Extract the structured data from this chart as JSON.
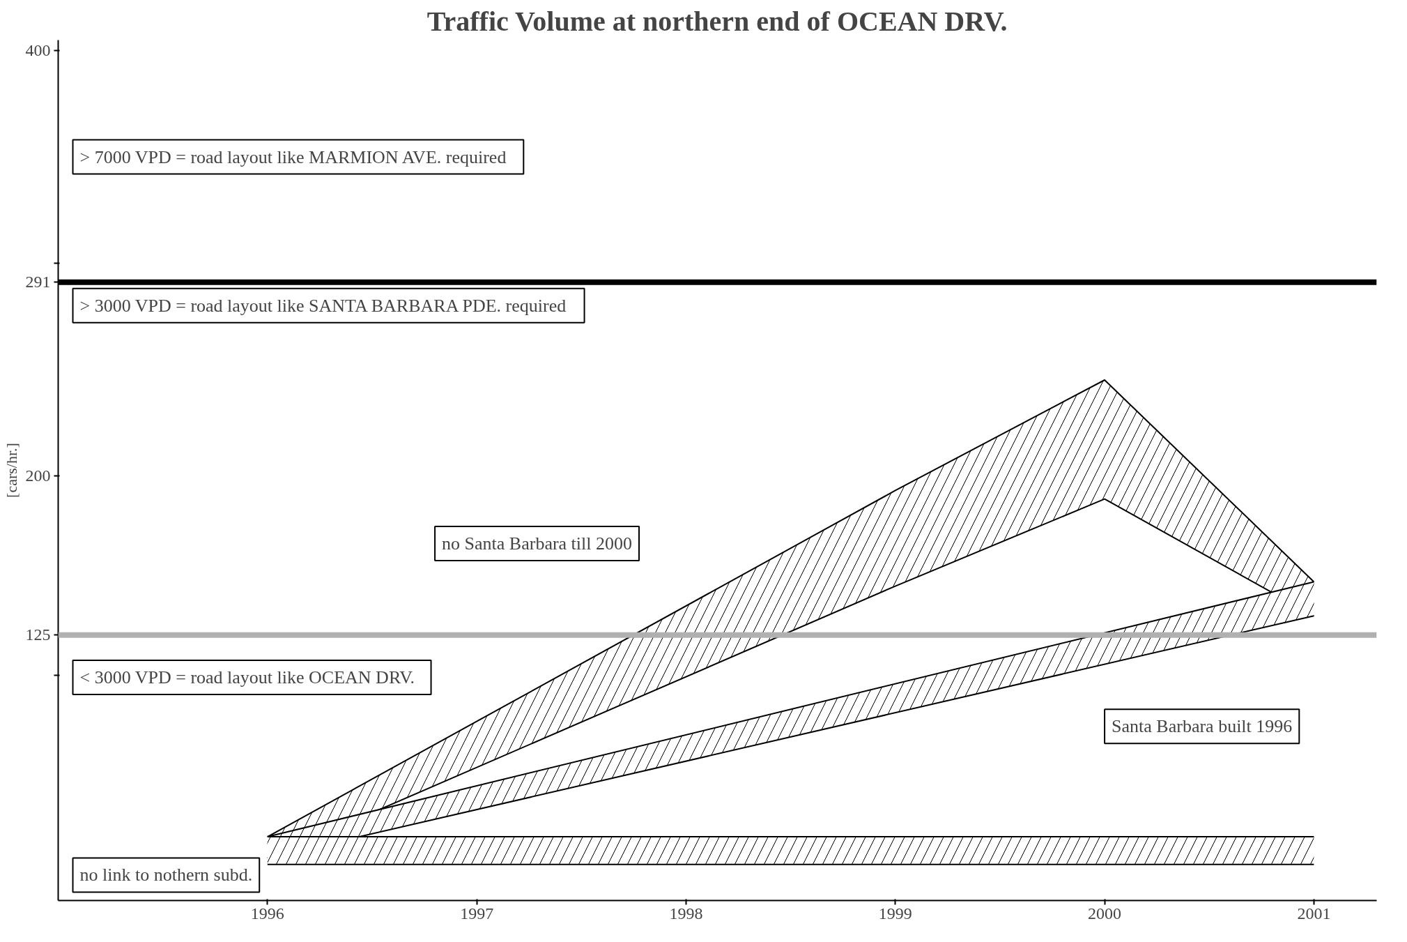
{
  "chart_data": {
    "type": "line",
    "title": "Traffic Volume at northern end of OCEAN DRV.",
    "ylabel": "[cars/hr.]",
    "xlim": [
      1995,
      2001.3
    ],
    "xticks": [
      1996,
      1997,
      1998,
      1999,
      2000,
      2001
    ],
    "ylim": [
      0,
      405
    ],
    "yticks": [
      400,
      {
        "value": 300,
        "label": null
      },
      291,
      200,
      125,
      {
        "value": 106,
        "label": null
      }
    ],
    "grid": false,
    "series": [
      {
        "color": "#000000",
        "x": [
          1996,
          1999,
          2000,
          2001
        ],
        "values": [
          30,
          193,
          245,
          150
        ],
        "lower": [
          20,
          148,
          189,
          134
        ],
        "upper": [
          30,
          193,
          245,
          150
        ]
      },
      {
        "color": "#000000",
        "x": [
          1996,
          2001
        ],
        "values": [
          30,
          150
        ],
        "lower": [
          20,
          134
        ],
        "upper": [
          30,
          150
        ]
      },
      {
        "color": "#000000",
        "x": [
          1996,
          1999,
          2001
        ],
        "values": [
          30,
          30,
          30
        ],
        "lower": [
          17,
          17,
          17
        ],
        "upper": [
          30,
          30,
          30
        ]
      }
    ],
    "ref_lines": [
      {
        "axis": "y",
        "value": 291,
        "color": "#000000"
      },
      {
        "axis": "y",
        "value": 125,
        "color": "#b0b0b0"
      }
    ],
    "annotations": [
      "> 7000 VPD  =  road layout like MARMION AVE. required",
      "> 3000 VPD  =  road layout like SANTA BARBARA PDE. required",
      "< 3000 VPD  =  road layout like OCEAN DRV.",
      "no Santa Barbara till 2000",
      "Santa Barbara built 1996",
      "no link to nothern subd."
    ]
  }
}
